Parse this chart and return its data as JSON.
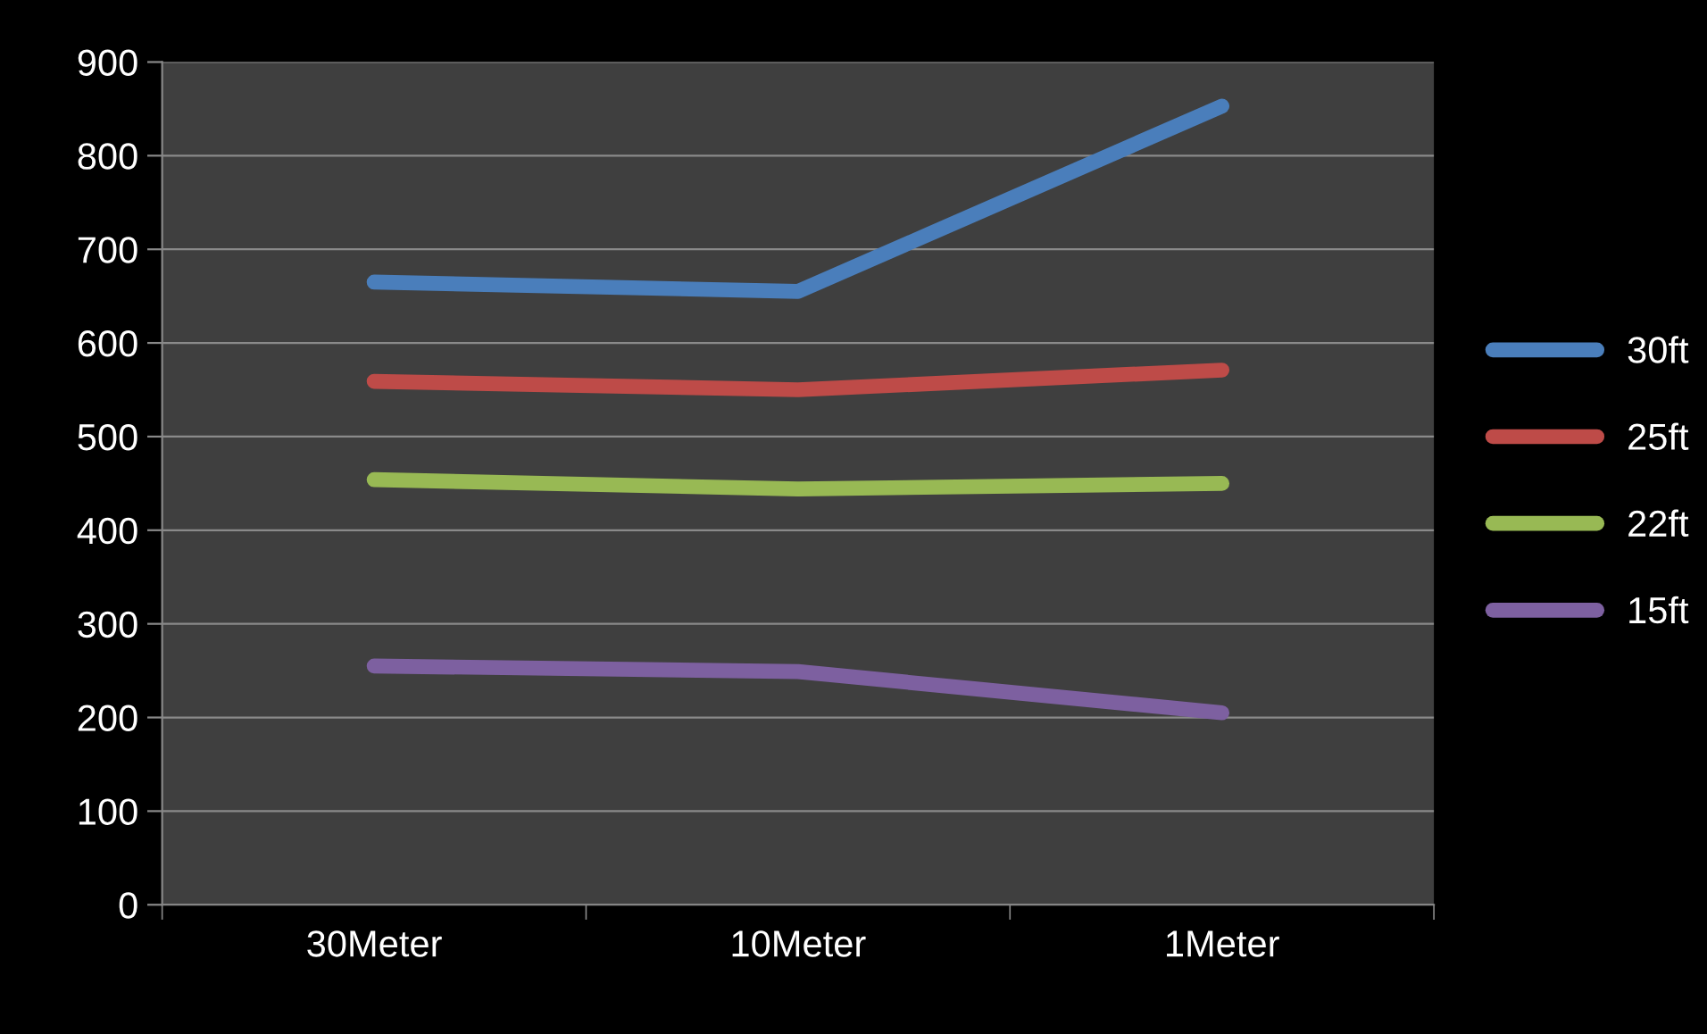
{
  "chart_data": {
    "type": "line",
    "categories": [
      "30Meter",
      "10Meter",
      "1Meter"
    ],
    "series": [
      {
        "name": "30ft",
        "color": "#4a7ebb",
        "values": [
          665,
          655,
          853
        ]
      },
      {
        "name": "25ft",
        "color": "#be4b48",
        "values": [
          559,
          550,
          571
        ]
      },
      {
        "name": "22ft",
        "color": "#98b954",
        "values": [
          454,
          444,
          450
        ]
      },
      {
        "name": "15ft",
        "color": "#7d60a0",
        "values": [
          255,
          249,
          205
        ]
      }
    ],
    "ylim": [
      0,
      900
    ],
    "yticks": [
      0,
      100,
      200,
      300,
      400,
      500,
      600,
      700,
      800,
      900
    ],
    "grid": "y",
    "legend": "right",
    "marker": "none",
    "line_style": "solid"
  }
}
